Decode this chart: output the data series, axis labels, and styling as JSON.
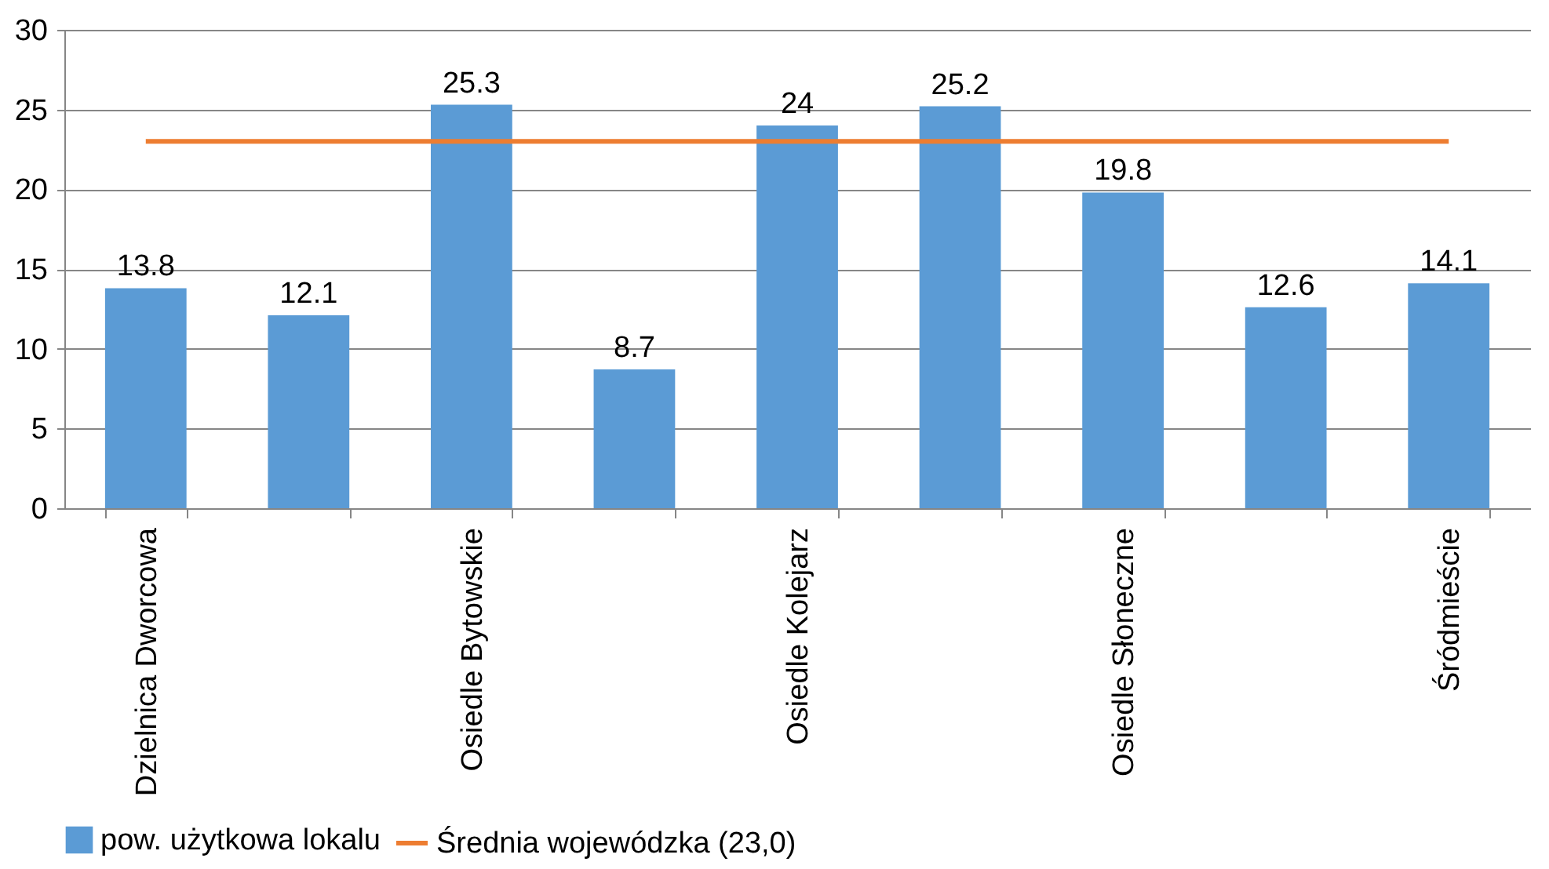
{
  "chart_data": {
    "type": "bar",
    "categories": [
      "Dzielnica Dworcowa",
      null,
      "Osiedle Bytowskie",
      null,
      "Osiedle Kolejarz",
      null,
      "Osiedle Słoneczne",
      null,
      "Śródmieście"
    ],
    "series": [
      {
        "name": "pow. użytkowa lokalu",
        "color": "#5b9bd5",
        "values": [
          13.8,
          12.1,
          25.3,
          8.7,
          24,
          25.2,
          19.8,
          12.6,
          14.1
        ]
      }
    ],
    "ref_lines": [
      {
        "axis": "y",
        "value": 23,
        "label": "Średnia wojewódzka (23,0)",
        "color": "#ed7d31"
      }
    ],
    "ylim": [
      0,
      30
    ],
    "yticks": [
      0,
      5,
      10,
      15,
      20,
      25,
      30
    ],
    "grid": "y",
    "legend": "bottom",
    "data_labels": true
  }
}
